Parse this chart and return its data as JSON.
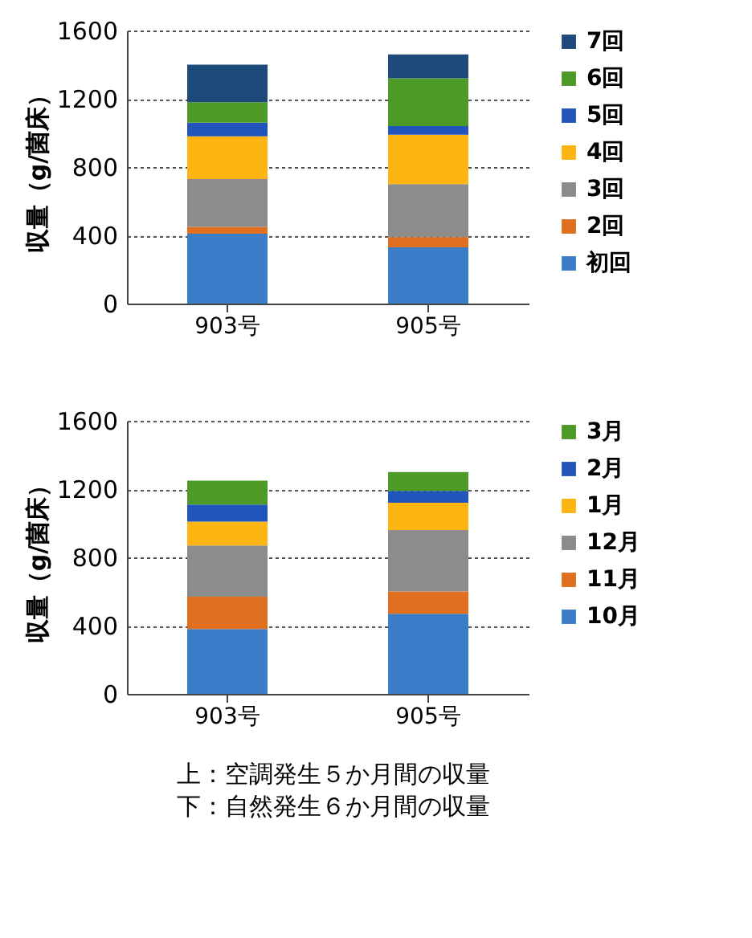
{
  "chart_data": [
    {
      "type": "bar",
      "stacked": true,
      "ylabel": "収量（g/菌床）",
      "categories": [
        "903号",
        "905号"
      ],
      "ylim": [
        0,
        1600
      ],
      "yticks": [
        0,
        400,
        800,
        1200,
        1600
      ],
      "grid": "y",
      "legend": "right",
      "series": [
        {
          "name": "初回",
          "color": "#3a7dc9",
          "values": [
            410,
            330
          ]
        },
        {
          "name": "2回",
          "color": "#e07020",
          "values": [
            40,
            60
          ]
        },
        {
          "name": "3回",
          "color": "#8c8c8c",
          "values": [
            280,
            310
          ]
        },
        {
          "name": "4回",
          "color": "#ffb511",
          "values": [
            250,
            290
          ]
        },
        {
          "name": "5回",
          "color": "#2255bb",
          "values": [
            80,
            50
          ]
        },
        {
          "name": "6回",
          "color": "#4d9a28",
          "values": [
            120,
            280
          ]
        },
        {
          "name": "7回",
          "color": "#1c4a7a",
          "values": [
            220,
            140
          ]
        }
      ]
    },
    {
      "type": "bar",
      "stacked": true,
      "ylabel": "収量（g/菌床）",
      "categories": [
        "903号",
        "905号"
      ],
      "ylim": [
        0,
        1600
      ],
      "yticks": [
        0,
        400,
        800,
        1200,
        1600
      ],
      "grid": "y",
      "legend": "right",
      "annotations": [
        "上：空調発生５か月間の収量",
        "下：自然発生６か月間の収量"
      ],
      "series": [
        {
          "name": "10月",
          "color": "#3a7dc9",
          "values": [
            380,
            470
          ]
        },
        {
          "name": "11月",
          "color": "#e07020",
          "values": [
            190,
            130
          ]
        },
        {
          "name": "12月",
          "color": "#8c8c8c",
          "values": [
            300,
            360
          ]
        },
        {
          "name": "1月",
          "color": "#ffb511",
          "values": [
            140,
            160
          ]
        },
        {
          "name": "2月",
          "color": "#2255bb",
          "values": [
            100,
            70
          ]
        },
        {
          "name": "3月",
          "color": "#4d9a28",
          "values": [
            140,
            110
          ]
        }
      ]
    }
  ]
}
